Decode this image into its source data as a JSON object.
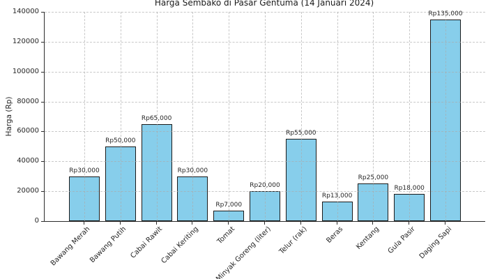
{
  "chart_data": {
    "type": "bar",
    "title": "Harga Sembako di Pasar Gentuma (14 Januari 2024)",
    "ylabel": "Harga (Rp)",
    "xlabel": "",
    "categories": [
      "Bawang Merah",
      "Bawang Putih",
      "Cabai Rawit",
      "Cabai Keriting",
      "Tomat",
      "Minyak Goreng (liter)",
      "Telur (rak)",
      "Beras",
      "Kentang",
      "Gula Pasir",
      "Daging Sapi"
    ],
    "values": [
      30000,
      50000,
      65000,
      30000,
      7000,
      20000,
      55000,
      13000,
      25000,
      18000,
      135000
    ],
    "bar_labels": [
      "Rp30,000",
      "Rp50,000",
      "Rp65,000",
      "Rp30,000",
      "Rp7,000",
      "Rp20,000",
      "Rp55,000",
      "Rp13,000",
      "Rp25,000",
      "Rp18,000",
      "Rp135,000"
    ],
    "ylim": [
      0,
      140000
    ],
    "yticks": [
      0,
      20000,
      40000,
      60000,
      80000,
      100000,
      120000,
      140000
    ],
    "grid": true,
    "grid_style": "dashed",
    "legend_position": "none",
    "bar_color": "#87CEEB",
    "bar_edge_color": "#1a1a1a",
    "text_color": "#262626",
    "background_color": "#ffffff"
  }
}
